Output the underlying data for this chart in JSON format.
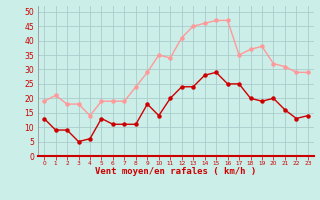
{
  "hours": [
    0,
    1,
    2,
    3,
    4,
    5,
    6,
    7,
    8,
    9,
    10,
    11,
    12,
    13,
    14,
    15,
    16,
    17,
    18,
    19,
    20,
    21,
    22,
    23
  ],
  "wind_mean": [
    13,
    9,
    9,
    5,
    6,
    13,
    11,
    11,
    11,
    18,
    14,
    20,
    24,
    24,
    28,
    29,
    25,
    25,
    20,
    19,
    20,
    16,
    13,
    14
  ],
  "wind_gust": [
    19,
    21,
    18,
    18,
    14,
    19,
    19,
    19,
    24,
    29,
    35,
    34,
    41,
    45,
    46,
    47,
    47,
    35,
    37,
    38,
    32,
    31,
    29,
    29
  ],
  "bg_color": "#cceee8",
  "grid_color": "#aacccc",
  "mean_color": "#cc0000",
  "gust_color": "#ff9999",
  "xlabel": "Vent moyen/en rafales ( km/h )",
  "xlabel_color": "#cc0000",
  "tick_color": "#cc0000",
  "spine_color": "#888888",
  "ylim": [
    0,
    52
  ],
  "yticks": [
    0,
    5,
    10,
    15,
    20,
    25,
    30,
    35,
    40,
    45,
    50
  ],
  "marker_size": 2.2,
  "line_width": 1.0
}
